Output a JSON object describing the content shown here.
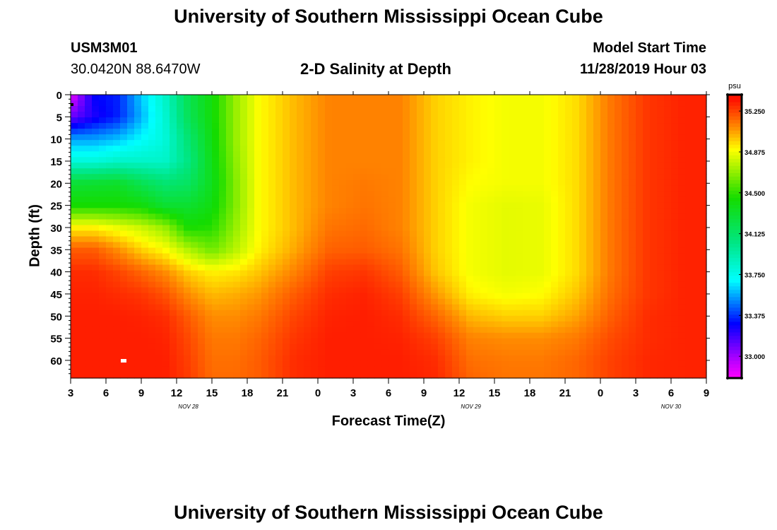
{
  "page": {
    "title_top": "University of Southern Mississippi Ocean Cube",
    "title_bottom": "University of Southern Mississippi Ocean Cube",
    "station_id": "USM3M01",
    "location": "30.0420N 88.6470W",
    "plot_title": "2-D Salinity at Depth",
    "model_start_label": "Model Start Time",
    "model_start_value": "11/28/2019 Hour 03"
  },
  "chart_data": {
    "type": "heatmap",
    "title": "2-D Salinity at Depth",
    "xlabel": "Forecast Time(Z)",
    "ylabel": "Depth (ft)",
    "x_start_hour": 3,
    "x_end_hour": 57,
    "x_tick_labels": [
      "3",
      "6",
      "9",
      "12",
      "15",
      "18",
      "21",
      "0",
      "3",
      "6",
      "9",
      "12",
      "15",
      "18",
      "21",
      "0",
      "3",
      "6",
      "9"
    ],
    "date_labels": [
      {
        "text": "NOV  28",
        "hour": 13
      },
      {
        "text": "NOV  29",
        "hour": 37
      },
      {
        "text": "NOV  30",
        "hour": 54
      }
    ],
    "ylim": [
      0,
      64
    ],
    "y_ticks": [
      0,
      5,
      10,
      15,
      20,
      25,
      30,
      35,
      40,
      45,
      50,
      55,
      60
    ],
    "y_tick_labels": [
      "0",
      "5",
      "10",
      "15",
      "20",
      "25",
      "30",
      "35",
      "40",
      "45",
      "50",
      "55",
      "60"
    ],
    "colorbar": {
      "unit": "psu",
      "min": 32.8,
      "max": 35.4,
      "tick_values": [
        33.0,
        33.375,
        33.75,
        34.125,
        34.5,
        34.875,
        35.25
      ],
      "tick_labels": [
        "33.000",
        "33.375",
        "33.750",
        "34.125",
        "34.500",
        "34.875",
        "35.250"
      ]
    },
    "salinity_grid": {
      "units": "psu",
      "hours": [
        3,
        5,
        7,
        9,
        11,
        13,
        15,
        17,
        19,
        22,
        25,
        28,
        31,
        34,
        37,
        40,
        43,
        46,
        49,
        52,
        55,
        57
      ],
      "depths": [
        0,
        5,
        10,
        15,
        20,
        25,
        30,
        35,
        40,
        45,
        50,
        55,
        60,
        64
      ],
      "values": [
        [
          32.85,
          33.3,
          33.35,
          33.62,
          33.85,
          34.2,
          34.42,
          34.7,
          34.9,
          35.02,
          35.12,
          35.12,
          35.12,
          34.98,
          34.92,
          34.88,
          34.88,
          34.96,
          35.15,
          35.28,
          35.32,
          35.32
        ],
        [
          33.1,
          33.25,
          33.35,
          33.58,
          33.82,
          34.18,
          34.42,
          34.7,
          34.9,
          35.02,
          35.12,
          35.12,
          35.12,
          34.98,
          34.92,
          34.88,
          34.88,
          34.96,
          35.15,
          35.28,
          35.32,
          35.32
        ],
        [
          33.55,
          33.55,
          33.6,
          33.7,
          33.8,
          34.1,
          34.4,
          34.7,
          34.9,
          35.02,
          35.12,
          35.12,
          35.12,
          34.98,
          34.92,
          34.88,
          34.88,
          34.96,
          35.15,
          35.28,
          35.32,
          35.32
        ],
        [
          33.8,
          33.8,
          33.85,
          33.85,
          33.85,
          34.05,
          34.38,
          34.68,
          34.9,
          35.02,
          35.12,
          35.12,
          35.12,
          34.98,
          34.92,
          34.88,
          34.88,
          34.96,
          35.15,
          35.28,
          35.32,
          35.32
        ],
        [
          34.28,
          34.3,
          34.32,
          34.2,
          34.1,
          34.15,
          34.36,
          34.66,
          34.9,
          35.02,
          35.12,
          35.14,
          35.12,
          34.98,
          34.9,
          34.88,
          34.88,
          34.96,
          35.15,
          35.28,
          35.32,
          35.32
        ],
        [
          34.45,
          34.45,
          34.45,
          34.42,
          34.3,
          34.3,
          34.4,
          34.66,
          34.9,
          35.02,
          35.12,
          35.15,
          35.12,
          34.98,
          34.88,
          34.85,
          34.86,
          34.96,
          35.15,
          35.28,
          35.32,
          35.32
        ],
        [
          34.92,
          34.92,
          34.86,
          34.8,
          34.7,
          34.45,
          34.48,
          34.7,
          34.9,
          35.02,
          35.15,
          35.17,
          35.12,
          34.98,
          34.88,
          34.85,
          34.86,
          34.96,
          35.15,
          35.28,
          35.32,
          35.32
        ],
        [
          35.2,
          35.2,
          35.1,
          34.98,
          34.9,
          34.75,
          34.62,
          34.76,
          34.92,
          35.05,
          35.19,
          35.2,
          35.15,
          34.98,
          34.88,
          34.85,
          34.86,
          34.96,
          35.15,
          35.28,
          35.32,
          35.32
        ],
        [
          35.3,
          35.3,
          35.25,
          35.18,
          35.1,
          34.98,
          34.92,
          34.94,
          35.0,
          35.12,
          35.26,
          35.28,
          35.2,
          35.0,
          34.88,
          34.85,
          34.86,
          34.96,
          35.15,
          35.28,
          35.32,
          35.32
        ],
        [
          35.32,
          35.32,
          35.3,
          35.28,
          35.22,
          35.1,
          35.02,
          35.04,
          35.08,
          35.2,
          35.3,
          35.32,
          35.26,
          35.08,
          34.92,
          34.88,
          34.9,
          35.0,
          35.17,
          35.28,
          35.32,
          35.32
        ],
        [
          35.33,
          35.33,
          35.33,
          35.32,
          35.3,
          35.2,
          35.1,
          35.1,
          35.14,
          35.25,
          35.32,
          35.33,
          35.3,
          35.18,
          35.02,
          34.98,
          34.98,
          35.06,
          35.2,
          35.3,
          35.32,
          35.32
        ],
        [
          35.33,
          35.33,
          35.33,
          35.33,
          35.32,
          35.24,
          35.14,
          35.14,
          35.18,
          35.28,
          35.33,
          35.33,
          35.32,
          35.26,
          35.12,
          35.1,
          35.1,
          35.14,
          35.24,
          35.3,
          35.32,
          35.32
        ],
        [
          35.33,
          35.33,
          35.33,
          35.33,
          35.33,
          35.26,
          35.16,
          35.16,
          35.2,
          35.3,
          35.33,
          35.33,
          35.33,
          35.3,
          35.16,
          35.14,
          35.14,
          35.18,
          35.26,
          35.31,
          35.32,
          35.32
        ],
        [
          35.33,
          35.33,
          35.33,
          35.33,
          35.33,
          35.27,
          35.17,
          35.17,
          35.2,
          35.3,
          35.33,
          35.33,
          35.33,
          35.31,
          35.18,
          35.15,
          35.15,
          35.18,
          35.26,
          35.31,
          35.32,
          35.32
        ]
      ]
    }
  }
}
